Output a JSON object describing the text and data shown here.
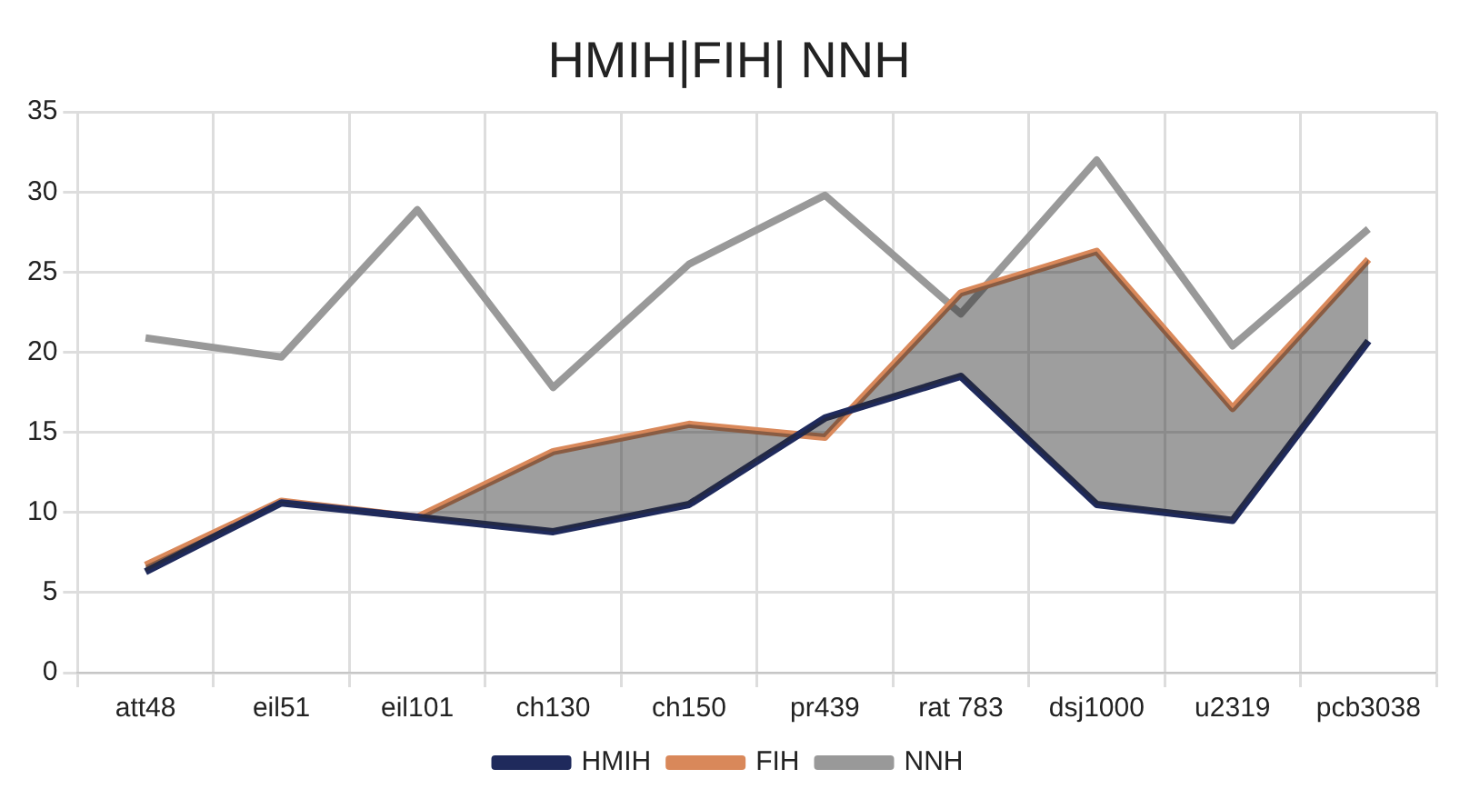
{
  "chart_data": {
    "type": "line",
    "title": "HMIH|FIH| NNH",
    "categories": [
      "att48",
      "eil51",
      "eil101",
      "ch130",
      "ch150",
      "pr439",
      "rat 783",
      "dsj1000",
      "u2319",
      "pcb3038"
    ],
    "series": [
      {
        "name": "HMIH",
        "color": "#1f2a5c",
        "values": [
          6.3,
          10.6,
          9.7,
          8.8,
          10.5,
          15.9,
          18.5,
          10.5,
          9.5,
          20.7
        ]
      },
      {
        "name": "FIH",
        "color": "#d9885a",
        "values": [
          6.7,
          10.7,
          9.7,
          13.8,
          15.5,
          14.7,
          23.7,
          26.3,
          16.5,
          25.8
        ],
        "lower": [
          6.3,
          10.6,
          9.7,
          8.8,
          10.5,
          15.9,
          18.5,
          10.5,
          9.5,
          20.7
        ],
        "upper": [
          6.7,
          10.7,
          9.7,
          13.8,
          15.5,
          14.7,
          23.7,
          26.3,
          16.5,
          25.8
        ]
      },
      {
        "name": "NNH",
        "color": "#999999",
        "values": [
          20.9,
          19.7,
          28.9,
          17.8,
          25.5,
          29.8,
          22.4,
          32.0,
          20.4,
          27.7
        ]
      }
    ],
    "ylim": [
      0,
      35
    ],
    "yticks": [
      0,
      5,
      10,
      15,
      20,
      25,
      30,
      35
    ],
    "grid": true,
    "legend": "bottom",
    "marker": "none",
    "line_style": "solid"
  }
}
